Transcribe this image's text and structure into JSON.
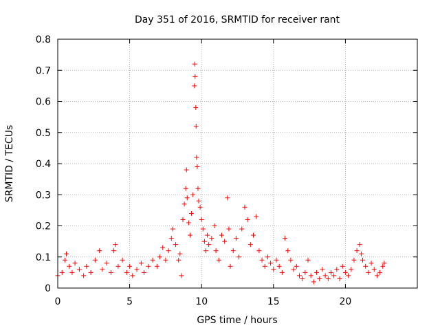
{
  "chart_data": {
    "type": "scatter",
    "title": "Day 351 of 2016, SRMTID for receiver rant",
    "xlabel": "GPS time / hours",
    "ylabel": "SRMTID / TECUs",
    "xlim": [
      0,
      25
    ],
    "ylim": [
      0,
      0.8
    ],
    "xticks": [
      0,
      5,
      10,
      15,
      20
    ],
    "yticks": [
      0,
      0.1,
      0.2,
      0.3,
      0.4,
      0.5,
      0.6,
      0.7,
      0.8
    ],
    "xtick_labels": [
      "0",
      "5",
      "10",
      "15",
      "20"
    ],
    "ytick_labels": [
      "0",
      "0.1",
      "0.2",
      "0.3",
      "0.4",
      "0.5",
      "0.6",
      "0.7",
      "0.8"
    ],
    "grid": true,
    "marker": "+",
    "color": "#ff0000",
    "series": [
      {
        "name": "SRMTID",
        "points": [
          [
            0.0,
            0.04
          ],
          [
            0.3,
            0.05
          ],
          [
            0.5,
            0.09
          ],
          [
            0.6,
            0.11
          ],
          [
            0.8,
            0.07
          ],
          [
            1.0,
            0.05
          ],
          [
            1.2,
            0.08
          ],
          [
            1.5,
            0.06
          ],
          [
            1.8,
            0.04
          ],
          [
            2.0,
            0.07
          ],
          [
            2.3,
            0.05
          ],
          [
            2.6,
            0.09
          ],
          [
            2.9,
            0.12
          ],
          [
            3.1,
            0.06
          ],
          [
            3.4,
            0.08
          ],
          [
            3.7,
            0.05
          ],
          [
            3.9,
            0.12
          ],
          [
            4.0,
            0.14
          ],
          [
            4.2,
            0.07
          ],
          [
            4.5,
            0.09
          ],
          [
            4.8,
            0.05
          ],
          [
            5.0,
            0.07
          ],
          [
            5.2,
            0.04
          ],
          [
            5.5,
            0.06
          ],
          [
            5.8,
            0.08
          ],
          [
            6.0,
            0.05
          ],
          [
            6.3,
            0.07
          ],
          [
            6.6,
            0.09
          ],
          [
            6.9,
            0.07
          ],
          [
            7.1,
            0.1
          ],
          [
            7.3,
            0.13
          ],
          [
            7.5,
            0.09
          ],
          [
            7.7,
            0.12
          ],
          [
            7.9,
            0.16
          ],
          [
            8.0,
            0.19
          ],
          [
            8.2,
            0.14
          ],
          [
            8.4,
            0.09
          ],
          [
            8.5,
            0.11
          ],
          [
            8.6,
            0.04
          ],
          [
            8.7,
            0.22
          ],
          [
            8.8,
            0.27
          ],
          [
            8.9,
            0.32
          ],
          [
            8.95,
            0.38
          ],
          [
            9.0,
            0.29
          ],
          [
            9.1,
            0.21
          ],
          [
            9.2,
            0.17
          ],
          [
            9.3,
            0.24
          ],
          [
            9.4,
            0.3
          ],
          [
            9.5,
            0.65
          ],
          [
            9.52,
            0.72
          ],
          [
            9.55,
            0.68
          ],
          [
            9.6,
            0.58
          ],
          [
            9.62,
            0.52
          ],
          [
            9.65,
            0.42
          ],
          [
            9.7,
            0.39
          ],
          [
            9.75,
            0.32
          ],
          [
            9.8,
            0.28
          ],
          [
            9.9,
            0.26
          ],
          [
            10.0,
            0.22
          ],
          [
            10.1,
            0.19
          ],
          [
            10.2,
            0.15
          ],
          [
            10.3,
            0.12
          ],
          [
            10.4,
            0.17
          ],
          [
            10.5,
            0.14
          ],
          [
            10.7,
            0.16
          ],
          [
            10.9,
            0.2
          ],
          [
            11.0,
            0.12
          ],
          [
            11.2,
            0.09
          ],
          [
            11.4,
            0.17
          ],
          [
            11.6,
            0.15
          ],
          [
            11.8,
            0.29
          ],
          [
            11.9,
            0.19
          ],
          [
            12.0,
            0.07
          ],
          [
            12.2,
            0.12
          ],
          [
            12.4,
            0.16
          ],
          [
            12.6,
            0.1
          ],
          [
            12.8,
            0.19
          ],
          [
            13.0,
            0.26
          ],
          [
            13.2,
            0.22
          ],
          [
            13.4,
            0.14
          ],
          [
            13.6,
            0.17
          ],
          [
            13.8,
            0.23
          ],
          [
            14.0,
            0.12
          ],
          [
            14.2,
            0.09
          ],
          [
            14.4,
            0.07
          ],
          [
            14.6,
            0.1
          ],
          [
            14.8,
            0.08
          ],
          [
            15.0,
            0.06
          ],
          [
            15.2,
            0.09
          ],
          [
            15.4,
            0.07
          ],
          [
            15.6,
            0.05
          ],
          [
            15.8,
            0.16
          ],
          [
            16.0,
            0.12
          ],
          [
            16.2,
            0.09
          ],
          [
            16.4,
            0.06
          ],
          [
            16.6,
            0.07
          ],
          [
            16.8,
            0.04
          ],
          [
            17.0,
            0.03
          ],
          [
            17.2,
            0.05
          ],
          [
            17.4,
            0.09
          ],
          [
            17.6,
            0.04
          ],
          [
            17.8,
            0.02
          ],
          [
            18.0,
            0.05
          ],
          [
            18.2,
            0.03
          ],
          [
            18.4,
            0.06
          ],
          [
            18.6,
            0.04
          ],
          [
            18.8,
            0.03
          ],
          [
            19.0,
            0.05
          ],
          [
            19.2,
            0.04
          ],
          [
            19.4,
            0.06
          ],
          [
            19.6,
            0.03
          ],
          [
            19.8,
            0.07
          ],
          [
            20.0,
            0.05
          ],
          [
            20.2,
            0.04
          ],
          [
            20.4,
            0.06
          ],
          [
            20.6,
            0.09
          ],
          [
            20.8,
            0.12
          ],
          [
            21.0,
            0.14
          ],
          [
            21.1,
            0.11
          ],
          [
            21.2,
            0.09
          ],
          [
            21.4,
            0.07
          ],
          [
            21.6,
            0.05
          ],
          [
            21.8,
            0.08
          ],
          [
            22.0,
            0.06
          ],
          [
            22.2,
            0.04
          ],
          [
            22.4,
            0.05
          ],
          [
            22.6,
            0.07
          ],
          [
            22.7,
            0.08
          ]
        ]
      }
    ]
  }
}
